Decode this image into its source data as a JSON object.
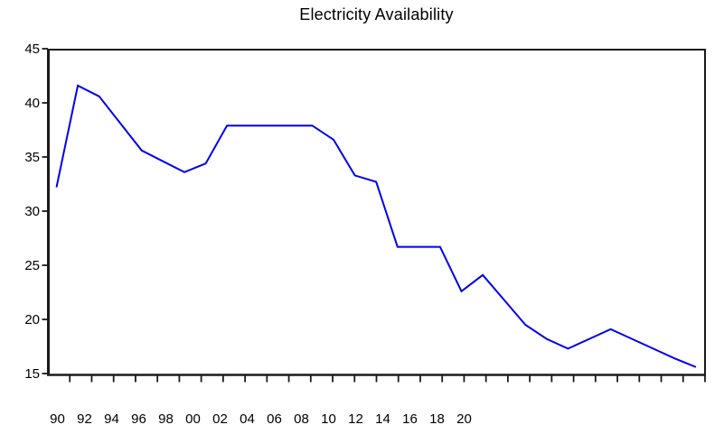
{
  "title": "Electricity Availability",
  "colors": {
    "line": "#0000EE",
    "axis": "#1a1a1a",
    "background": "#ffffff",
    "text": "#000000"
  },
  "chart_data": {
    "type": "line",
    "title": "Electricity Availability",
    "xlabel": "",
    "ylabel": "",
    "x": [
      1990,
      1991,
      1992,
      1993,
      1994,
      1995,
      1996,
      1997,
      1998,
      1999,
      2000,
      2001,
      2002,
      2003,
      2004,
      2005,
      2006,
      2007,
      2008,
      2009,
      2010,
      2011,
      2012,
      2013,
      2014,
      2015,
      2016,
      2017,
      2018,
      2019,
      2020
    ],
    "values": [
      32.2,
      41.6,
      40.6,
      38.1,
      35.6,
      34.6,
      33.6,
      34.4,
      37.9,
      37.9,
      37.9,
      37.9,
      37.9,
      36.6,
      33.3,
      32.7,
      26.7,
      26.7,
      26.7,
      22.6,
      24.1,
      21.8,
      19.5,
      18.2,
      17.3,
      18.2,
      19.1,
      18.2,
      17.3,
      16.4,
      15.6
    ],
    "ylim": [
      15,
      45
    ],
    "y_ticks": [
      15,
      20,
      25,
      30,
      35,
      40,
      45
    ],
    "y_tick_labels": [
      "15",
      "20",
      "25",
      "30",
      "35",
      "40",
      "45"
    ],
    "x_tick_labels": [
      "90",
      "92",
      "94",
      "96",
      "98",
      "00",
      "02",
      "04",
      "06",
      "08",
      "10",
      "12",
      "14",
      "16",
      "18",
      "20"
    ],
    "grid": false,
    "legend": "none",
    "line_color": "#0000EE"
  }
}
